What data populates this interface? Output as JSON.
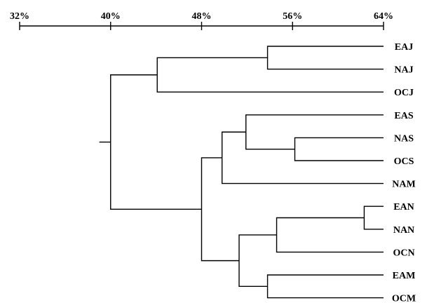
{
  "axis": {
    "ticks": [
      "32%",
      "40%",
      "48%",
      "56%",
      "64%"
    ],
    "tick_values": [
      32,
      40,
      48,
      56,
      64
    ],
    "range": [
      32,
      64
    ]
  },
  "leaves": [
    "EAJ",
    "NAJ",
    "OCJ",
    "EAS",
    "NAS",
    "OCS",
    "NAM",
    "EAN",
    "NAN",
    "OCN",
    "EAM",
    "OCM"
  ],
  "clusters": [
    {
      "id": "c1",
      "children": [
        "EAJ",
        "NAJ"
      ],
      "height": 53.8
    },
    {
      "id": "c2",
      "children": [
        "c1",
        "OCJ"
      ],
      "height": 44.1
    },
    {
      "id": "c3",
      "children": [
        "NAS",
        "OCS"
      ],
      "height": 56.2
    },
    {
      "id": "c4",
      "children": [
        "EAS",
        "c3"
      ],
      "height": 51.9
    },
    {
      "id": "c5",
      "children": [
        "c4",
        "NAM"
      ],
      "height": 49.8
    },
    {
      "id": "c6",
      "children": [
        "EAN",
        "NAN"
      ],
      "height": 62.3
    },
    {
      "id": "c7",
      "children": [
        "c6",
        "OCN"
      ],
      "height": 54.6
    },
    {
      "id": "c8",
      "children": [
        "EAM",
        "OCM"
      ],
      "height": 53.8
    },
    {
      "id": "c9",
      "children": [
        "c7",
        "c8"
      ],
      "height": 51.3
    },
    {
      "id": "c10",
      "children": [
        "c5",
        "c9"
      ],
      "height": 48.0
    },
    {
      "id": "root",
      "children": [
        "c2",
        "c10"
      ],
      "height": 40.0
    }
  ],
  "root_stub": 39.5
}
